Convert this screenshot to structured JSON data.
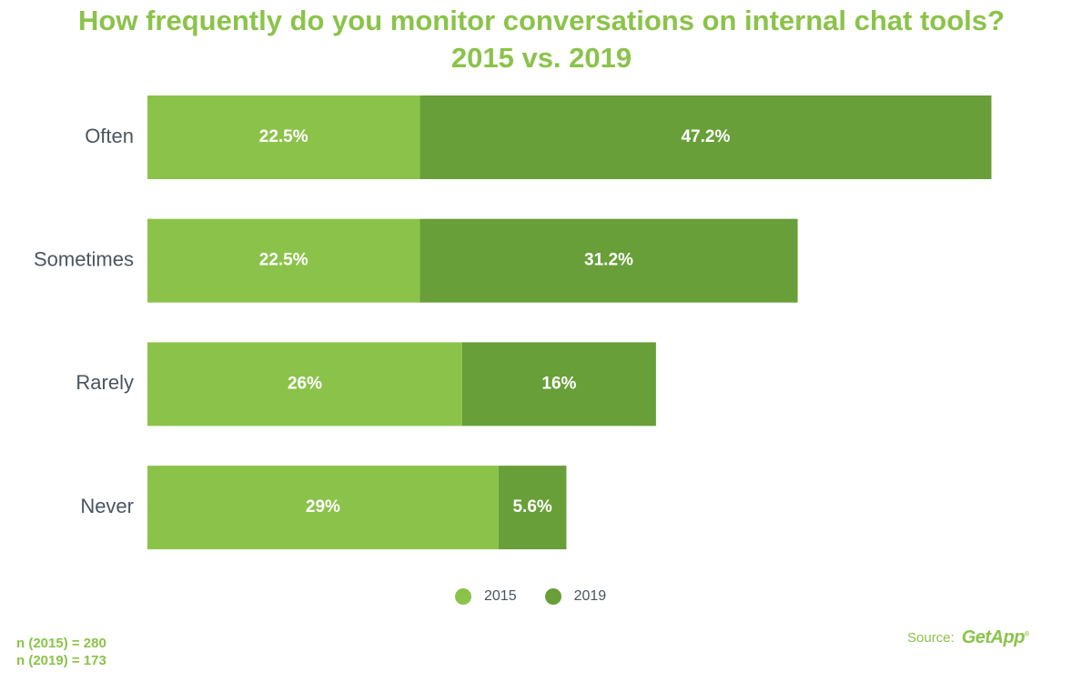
{
  "chart_data": {
    "type": "bar",
    "orientation": "horizontal",
    "stacked": true,
    "title": [
      "How frequently do you monitor conversations on internal chat tools?",
      "2015 vs. 2019"
    ],
    "categories": [
      "Often",
      "Sometimes",
      "Rarely",
      "Never"
    ],
    "series": [
      {
        "name": "2015",
        "values": [
          22.5,
          22.5,
          26,
          29
        ],
        "labels": [
          "22.5%",
          "22.5%",
          "26%",
          "29%"
        ],
        "color": "#8bc34a"
      },
      {
        "name": "2019",
        "values": [
          47.2,
          31.2,
          16,
          5.6
        ],
        "labels": [
          "47.2%",
          "31.2%",
          "16%",
          "5.6%"
        ],
        "color": "#689f38"
      }
    ],
    "xlim": [
      0,
      75
    ],
    "grid": false,
    "legend_position": "bottom"
  },
  "notes": [
    "n (2015) = 280",
    "n (2019) = 173"
  ],
  "source": {
    "label": "Source:",
    "logo_text": "GetApp",
    "logo_mark": "®"
  }
}
